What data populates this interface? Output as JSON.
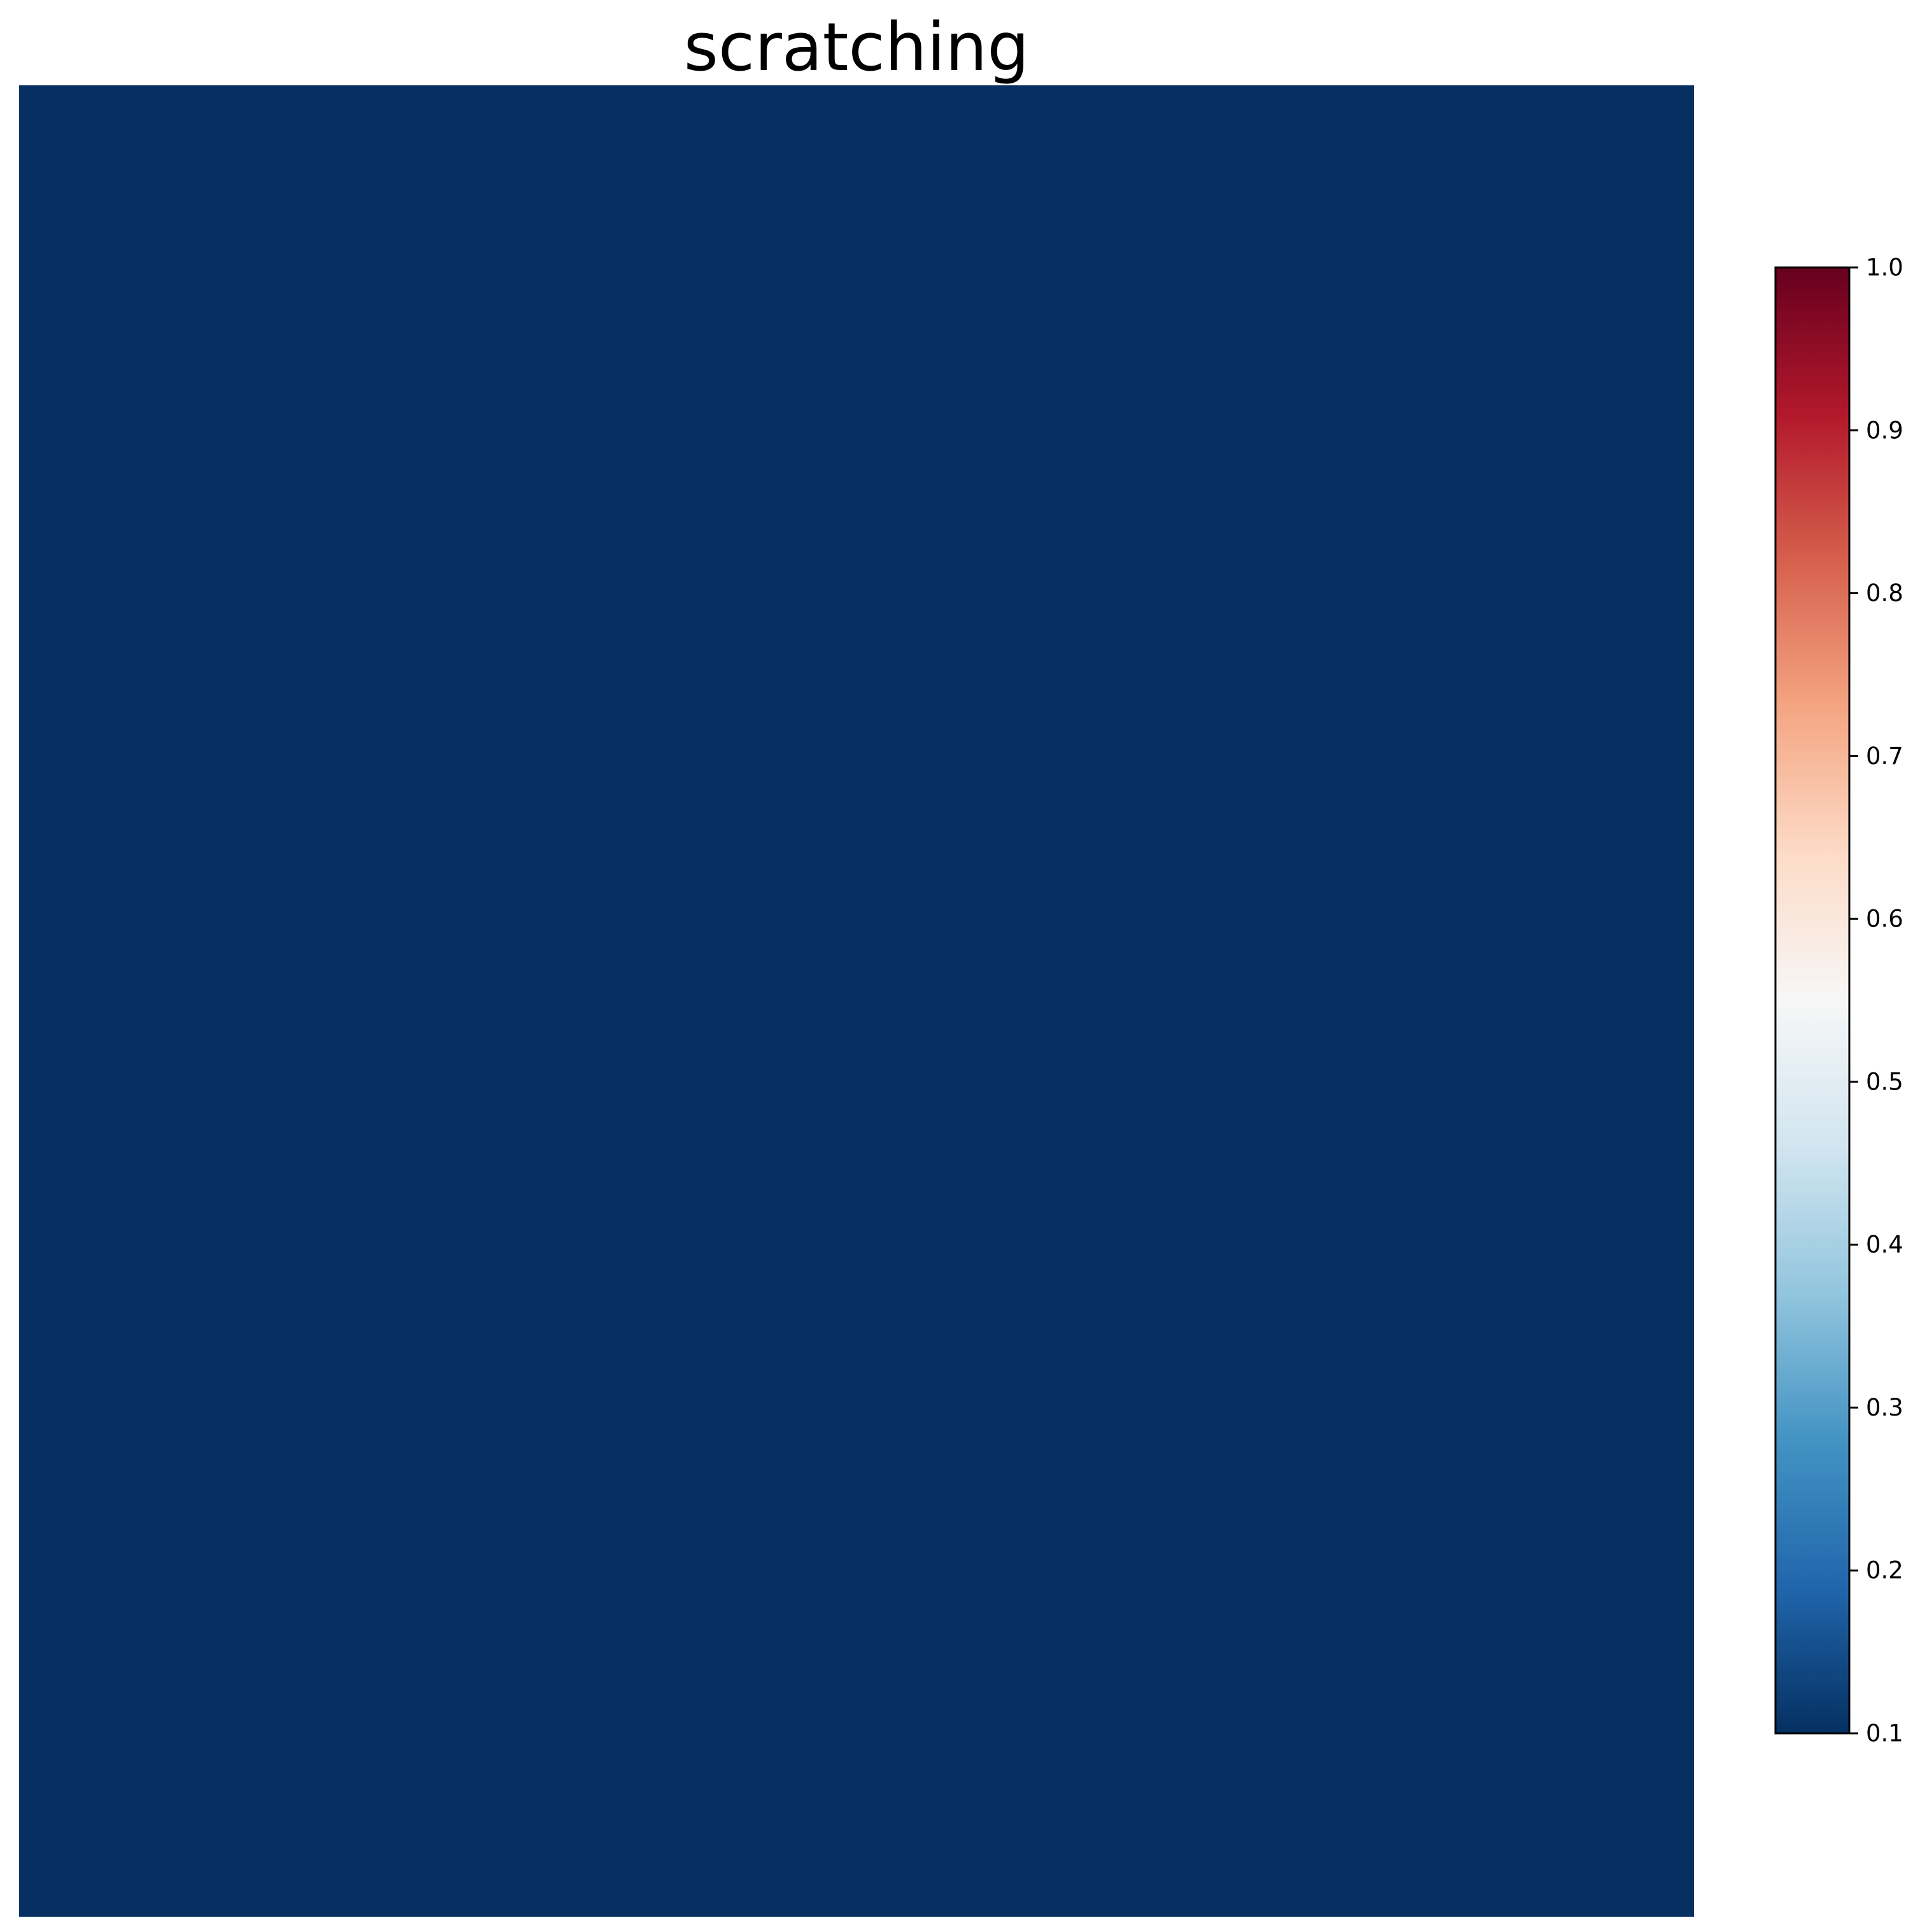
{
  "chart_data": {
    "type": "heatmap",
    "title": "scratching",
    "xlabel": "",
    "ylabel": "",
    "cell_value": 0.1,
    "grid": false,
    "colorbar": {
      "cmap": "RdBu_r",
      "range": [
        0.1,
        1.0
      ],
      "ticks": [
        "0.1",
        "0.2",
        "0.3",
        "0.4",
        "0.5",
        "0.6",
        "0.7",
        "0.8",
        "0.9",
        "1.0"
      ],
      "placement": "right",
      "colors": [
        "#053061",
        "#2166ac",
        "#4393c3",
        "#92c5de",
        "#d1e5f0",
        "#f7f7f7",
        "#fddbc7",
        "#f4a582",
        "#d6604d",
        "#b2182b",
        "#67001f"
      ]
    }
  }
}
